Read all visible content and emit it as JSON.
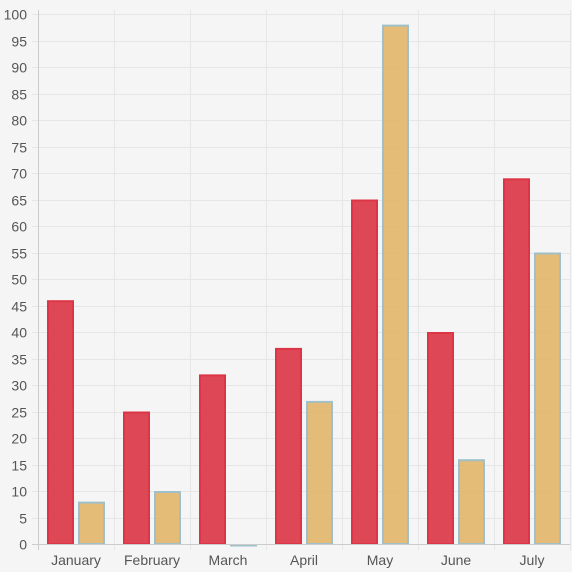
{
  "chart_data": {
    "type": "bar",
    "categories": [
      "January",
      "February",
      "March",
      "April",
      "May",
      "June",
      "July"
    ],
    "series": [
      {
        "values": [
          46,
          25,
          32,
          37,
          65,
          40,
          69
        ],
        "fill": "#dc3545",
        "border": "#dc3545"
      },
      {
        "values": [
          8,
          10,
          0,
          27,
          98,
          16,
          55
        ],
        "fill": "#e0b060",
        "border": "#9fc0c8"
      }
    ],
    "ylim": [
      0,
      100
    ],
    "y_ticks": [
      0,
      5,
      10,
      15,
      20,
      25,
      30,
      35,
      40,
      45,
      50,
      55,
      60,
      65,
      70,
      75,
      80,
      85,
      90,
      95,
      100
    ],
    "grid": true,
    "legend": "none"
  }
}
